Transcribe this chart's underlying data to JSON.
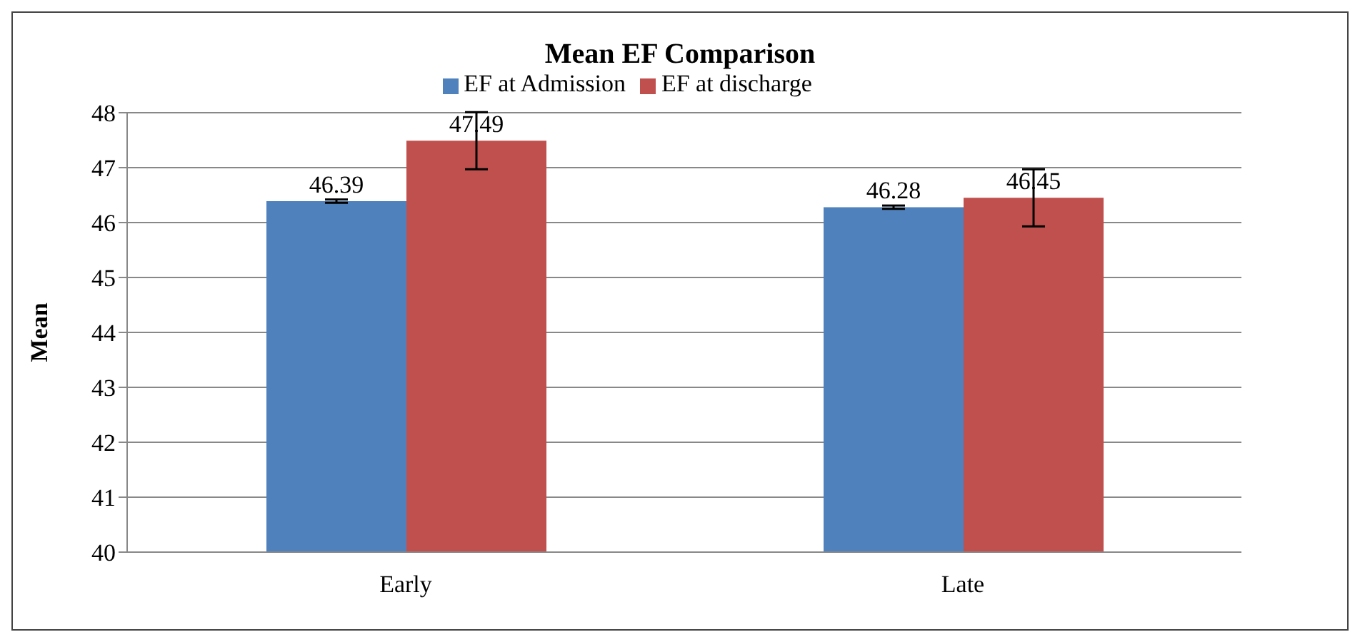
{
  "chart_data": {
    "type": "bar",
    "title": "Mean EF Comparison",
    "ylabel": "Mean",
    "categories": [
      "Early",
      "Late"
    ],
    "series": [
      {
        "name": "EF at Admission",
        "color": "#4f81bd",
        "values": [
          46.39,
          46.28
        ],
        "errors": [
          0.03,
          0.03
        ]
      },
      {
        "name": "EF at discharge",
        "color": "#c0504d",
        "values": [
          47.49,
          46.45
        ],
        "errors": [
          0.52,
          0.52
        ]
      }
    ],
    "ylim": [
      40,
      48
    ],
    "yticks": [
      40,
      41,
      42,
      43,
      44,
      45,
      46,
      47,
      48
    ],
    "grid": "y",
    "legend": "top",
    "data_labels": true
  }
}
